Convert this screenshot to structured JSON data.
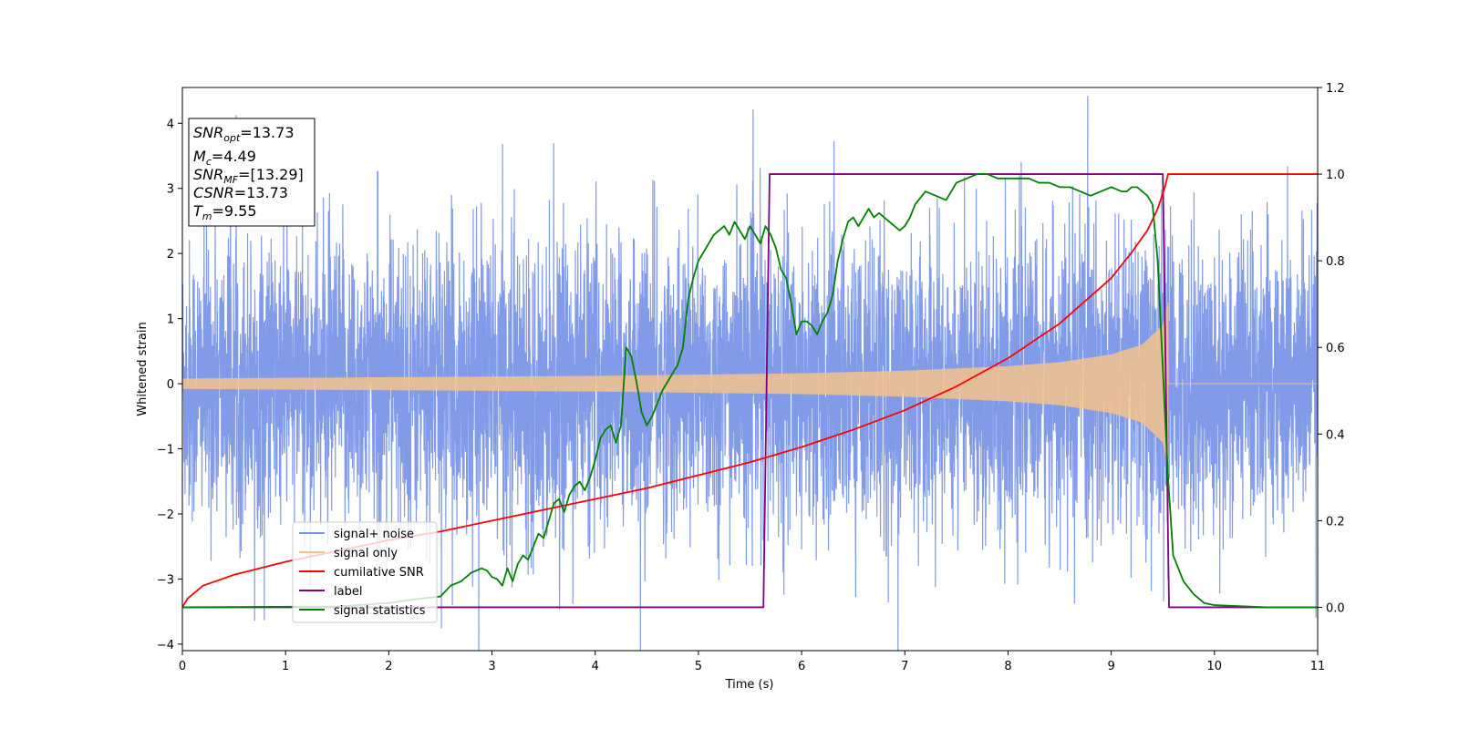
{
  "chart_data": {
    "type": "line",
    "title": "",
    "xlabel": "Time (s)",
    "ylabel": "Whitened strain",
    "ylabel_right": "",
    "xlim": [
      0,
      11
    ],
    "ylim": [
      -4.1,
      4.55
    ],
    "ylim_right": [
      -0.1,
      1.2
    ],
    "grid": false,
    "x_ticks": [
      "0",
      "1",
      "2",
      "3",
      "4",
      "5",
      "6",
      "7",
      "8",
      "9",
      "10",
      "11"
    ],
    "y_ticks": [
      "−4",
      "−3",
      "−2",
      "−1",
      "0",
      "1",
      "2",
      "3",
      "4"
    ],
    "y_right_ticks": [
      "0.0",
      "0.2",
      "0.4",
      "0.6",
      "0.8",
      "1.0",
      "1.2"
    ],
    "legend_position": "lower-left",
    "legend": [
      {
        "label": "signal+ noise",
        "color": "#7a96e8"
      },
      {
        "label": "signal only",
        "color": "#f5c28c"
      },
      {
        "label": "cumilative SNR",
        "color": "#ff0000"
      },
      {
        "label": "label",
        "color": "#800080"
      },
      {
        "label": "signal statistics",
        "color": "#008000"
      }
    ],
    "annotation": {
      "lines": [
        {
          "base": "SNR",
          "sub": "opt",
          "value": "=13.73"
        },
        {
          "base": "M",
          "sub": "c",
          "value": "=4.49"
        },
        {
          "base": "SNR",
          "sub": "MF",
          "value": "=[13.29]"
        },
        {
          "base": "CSNR",
          "sub": "",
          "value": "=13.73"
        },
        {
          "base": "T",
          "sub": "m",
          "value": "=9.55"
        }
      ]
    },
    "series": [
      {
        "name": "signal+ noise",
        "axis": "left",
        "color": "#7a96e8",
        "noise_sigma": 1.1,
        "x_range": [
          0,
          11
        ],
        "signal_end": 9.55
      },
      {
        "name": "signal only",
        "axis": "left",
        "color": "#f5c28c",
        "envelope": {
          "x": [
            0,
            1,
            2,
            3,
            4,
            5,
            6,
            7,
            8,
            8.5,
            9,
            9.3,
            9.5,
            9.55
          ],
          "y": [
            0.08,
            0.09,
            0.1,
            0.11,
            0.12,
            0.14,
            0.16,
            0.2,
            0.27,
            0.33,
            0.45,
            0.6,
            0.9,
            1.25
          ]
        },
        "after_merger": 0.0
      },
      {
        "name": "cumilative SNR",
        "axis": "right",
        "x": [
          0,
          0.05,
          0.2,
          0.5,
          1,
          1.5,
          2,
          2.5,
          3,
          3.5,
          4,
          4.5,
          5,
          5.5,
          6,
          6.5,
          7,
          7.5,
          8,
          8.5,
          9,
          9.2,
          9.35,
          9.45,
          9.52,
          9.55,
          11
        ],
        "y": [
          0.0,
          0.02,
          0.05,
          0.075,
          0.105,
          0.13,
          0.155,
          0.175,
          0.2,
          0.225,
          0.25,
          0.275,
          0.305,
          0.335,
          0.37,
          0.41,
          0.455,
          0.51,
          0.575,
          0.655,
          0.76,
          0.82,
          0.87,
          0.92,
          0.97,
          1.0,
          1.0
        ]
      },
      {
        "name": "label",
        "axis": "right",
        "x": [
          0,
          5.63,
          5.69,
          9.5,
          9.56,
          11
        ],
        "y": [
          0.0,
          0.0,
          1.0,
          1.0,
          0.0,
          0.0
        ]
      },
      {
        "name": "signal statistics",
        "axis": "right",
        "x": [
          0,
          1.5,
          2.0,
          2.3,
          2.5,
          2.6,
          2.7,
          2.8,
          2.9,
          2.95,
          3.0,
          3.05,
          3.1,
          3.15,
          3.2,
          3.25,
          3.3,
          3.35,
          3.4,
          3.45,
          3.5,
          3.55,
          3.6,
          3.65,
          3.7,
          3.75,
          3.8,
          3.85,
          3.9,
          3.95,
          4.0,
          4.05,
          4.1,
          4.15,
          4.2,
          4.25,
          4.3,
          4.35,
          4.4,
          4.45,
          4.5,
          4.55,
          4.6,
          4.65,
          4.7,
          4.75,
          4.8,
          4.85,
          4.9,
          4.95,
          5.0,
          5.05,
          5.1,
          5.15,
          5.2,
          5.25,
          5.3,
          5.35,
          5.4,
          5.45,
          5.5,
          5.55,
          5.6,
          5.65,
          5.7,
          5.75,
          5.8,
          5.85,
          5.9,
          5.95,
          6.0,
          6.05,
          6.1,
          6.15,
          6.2,
          6.25,
          6.3,
          6.35,
          6.4,
          6.45,
          6.5,
          6.55,
          6.6,
          6.65,
          6.7,
          6.75,
          6.8,
          6.85,
          6.9,
          6.95,
          7.0,
          7.05,
          7.1,
          7.2,
          7.3,
          7.4,
          7.5,
          7.6,
          7.7,
          7.8,
          7.9,
          8.0,
          8.1,
          8.2,
          8.3,
          8.4,
          8.5,
          8.6,
          8.7,
          8.8,
          8.9,
          9.0,
          9.1,
          9.15,
          9.2,
          9.25,
          9.3,
          9.35,
          9.4,
          9.45,
          9.5,
          9.55,
          9.6,
          9.7,
          9.8,
          9.9,
          10.0,
          10.5,
          11
        ],
        "y": [
          0.0,
          0.002,
          0.01,
          0.02,
          0.025,
          0.05,
          0.06,
          0.08,
          0.09,
          0.085,
          0.07,
          0.065,
          0.05,
          0.09,
          0.06,
          0.1,
          0.12,
          0.11,
          0.14,
          0.17,
          0.16,
          0.2,
          0.24,
          0.25,
          0.22,
          0.26,
          0.28,
          0.29,
          0.27,
          0.3,
          0.34,
          0.39,
          0.41,
          0.42,
          0.38,
          0.42,
          0.6,
          0.58,
          0.52,
          0.45,
          0.42,
          0.44,
          0.47,
          0.5,
          0.52,
          0.54,
          0.56,
          0.6,
          0.71,
          0.76,
          0.8,
          0.82,
          0.84,
          0.86,
          0.87,
          0.88,
          0.86,
          0.89,
          0.87,
          0.85,
          0.88,
          0.86,
          0.84,
          0.88,
          0.86,
          0.83,
          0.78,
          0.76,
          0.7,
          0.63,
          0.66,
          0.66,
          0.65,
          0.63,
          0.66,
          0.68,
          0.72,
          0.8,
          0.85,
          0.89,
          0.9,
          0.88,
          0.9,
          0.92,
          0.9,
          0.91,
          0.9,
          0.89,
          0.88,
          0.87,
          0.88,
          0.9,
          0.93,
          0.96,
          0.95,
          0.94,
          0.98,
          0.99,
          1.0,
          1.0,
          0.99,
          0.99,
          0.99,
          0.99,
          0.98,
          0.98,
          0.97,
          0.97,
          0.96,
          0.95,
          0.96,
          0.97,
          0.96,
          0.96,
          0.97,
          0.97,
          0.96,
          0.95,
          0.93,
          0.8,
          0.55,
          0.3,
          0.12,
          0.06,
          0.03,
          0.01,
          0.005,
          0.0,
          0.0
        ]
      }
    ]
  }
}
